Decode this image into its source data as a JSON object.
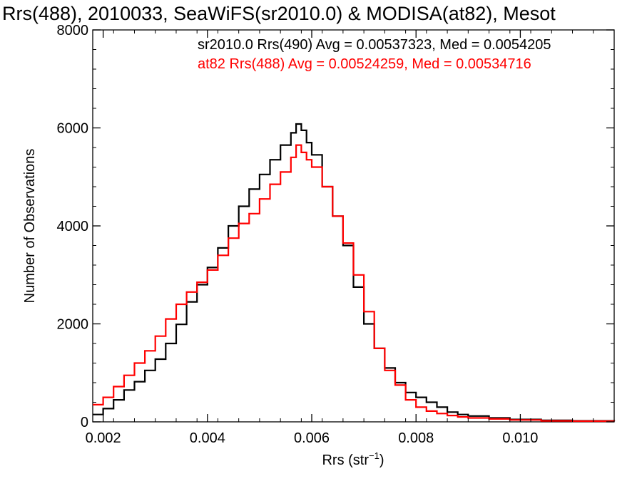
{
  "chart_data": {
    "type": "line",
    "title": "Rrs(488), 2010033, SeaWiFS(sr2010.0) & MODISA(at82), Mesot",
    "xlabel_main": "Rrs (str",
    "xlabel_sup": "−1",
    "xlabel_end": ")",
    "ylabel": "Number of Observations",
    "xlim": [
      0.0018,
      0.0118
    ],
    "ylim": [
      0,
      8000
    ],
    "x_ticks": [
      0.002,
      0.004,
      0.006,
      0.008,
      0.01
    ],
    "x_tick_labels": [
      "0.002",
      "0.004",
      "0.006",
      "0.008",
      "0.010"
    ],
    "y_ticks": [
      0,
      2000,
      4000,
      6000,
      8000
    ],
    "y_tick_labels": [
      "0",
      "2000",
      "4000",
      "6000",
      "8000"
    ],
    "step": true,
    "series": [
      {
        "name": "sr2010.0 Rrs(490) Avg = 0.00537323, Med = 0.0054205",
        "color": "#000000",
        "points": [
          [
            0.0018,
            150
          ],
          [
            0.002,
            270
          ],
          [
            0.0022,
            450
          ],
          [
            0.0024,
            650
          ],
          [
            0.0026,
            820
          ],
          [
            0.0028,
            1050
          ],
          [
            0.003,
            1280
          ],
          [
            0.0032,
            1600
          ],
          [
            0.0034,
            1990
          ],
          [
            0.0036,
            2450
          ],
          [
            0.0038,
            2800
          ],
          [
            0.004,
            3150
          ],
          [
            0.0042,
            3550
          ],
          [
            0.0044,
            4000
          ],
          [
            0.0046,
            4400
          ],
          [
            0.0048,
            4750
          ],
          [
            0.005,
            5050
          ],
          [
            0.0052,
            5350
          ],
          [
            0.0054,
            5650
          ],
          [
            0.0056,
            5900
          ],
          [
            0.0057,
            6080
          ],
          [
            0.0058,
            5950
          ],
          [
            0.0059,
            5700
          ],
          [
            0.006,
            5450
          ],
          [
            0.0062,
            4800
          ],
          [
            0.0064,
            4200
          ],
          [
            0.0066,
            3600
          ],
          [
            0.0068,
            2750
          ],
          [
            0.007,
            2000
          ],
          [
            0.0072,
            1500
          ],
          [
            0.0074,
            1100
          ],
          [
            0.0076,
            800
          ],
          [
            0.0078,
            600
          ],
          [
            0.008,
            500
          ],
          [
            0.0082,
            400
          ],
          [
            0.0084,
            300
          ],
          [
            0.0086,
            200
          ],
          [
            0.0088,
            150
          ],
          [
            0.009,
            120
          ],
          [
            0.0094,
            80
          ],
          [
            0.0098,
            50
          ],
          [
            0.0104,
            30
          ],
          [
            0.011,
            20
          ],
          [
            0.0118,
            10
          ]
        ]
      },
      {
        "name": "at82 Rrs(488) Avg = 0.00524259, Med = 0.00534716",
        "color": "#ff0000",
        "points": [
          [
            0.0018,
            350
          ],
          [
            0.002,
            500
          ],
          [
            0.0022,
            720
          ],
          [
            0.0024,
            950
          ],
          [
            0.0026,
            1200
          ],
          [
            0.0028,
            1450
          ],
          [
            0.003,
            1750
          ],
          [
            0.0032,
            2100
          ],
          [
            0.0034,
            2400
          ],
          [
            0.0036,
            2650
          ],
          [
            0.0038,
            2850
          ],
          [
            0.004,
            3100
          ],
          [
            0.0042,
            3400
          ],
          [
            0.0044,
            3750
          ],
          [
            0.0046,
            4050
          ],
          [
            0.0048,
            4250
          ],
          [
            0.005,
            4550
          ],
          [
            0.0052,
            4850
          ],
          [
            0.0054,
            5100
          ],
          [
            0.0056,
            5400
          ],
          [
            0.0057,
            5650
          ],
          [
            0.0058,
            5500
          ],
          [
            0.0059,
            5350
          ],
          [
            0.006,
            5200
          ],
          [
            0.0062,
            4800
          ],
          [
            0.0064,
            4200
          ],
          [
            0.0066,
            3650
          ],
          [
            0.0068,
            3000
          ],
          [
            0.007,
            2250
          ],
          [
            0.0072,
            1500
          ],
          [
            0.0074,
            1050
          ],
          [
            0.0076,
            750
          ],
          [
            0.0078,
            450
          ],
          [
            0.008,
            300
          ],
          [
            0.0082,
            220
          ],
          [
            0.0084,
            170
          ],
          [
            0.0086,
            130
          ],
          [
            0.0088,
            100
          ],
          [
            0.009,
            80
          ],
          [
            0.0094,
            60
          ],
          [
            0.0098,
            40
          ],
          [
            0.0104,
            20
          ],
          [
            0.011,
            15
          ],
          [
            0.0118,
            10
          ]
        ]
      }
    ]
  }
}
